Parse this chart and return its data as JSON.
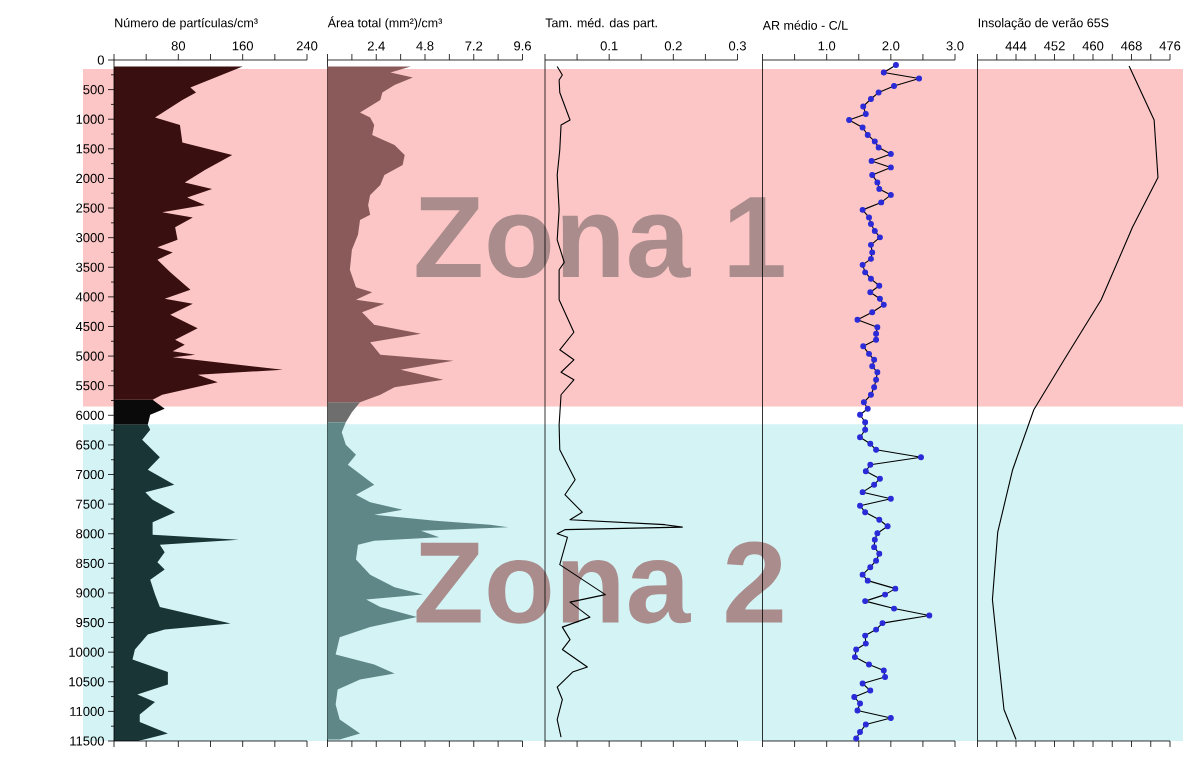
{
  "chart_data": [
    {
      "type": "area",
      "orientation": "horizontal",
      "title": "Número de partículas/cm³",
      "xlim": [
        0,
        240
      ],
      "xticks": [
        {
          "value": 0,
          "label": null
        },
        {
          "value": 40,
          "label": null
        },
        80,
        {
          "value": 120,
          "label": null
        },
        160,
        {
          "value": 200,
          "label": null
        },
        240
      ],
      "ylim": [
        11500,
        0
      ],
      "yticks": [
        0,
        {
          "value": 250,
          "label": null
        },
        500,
        {
          "value": 750,
          "label": null
        },
        1000,
        {
          "value": 1250,
          "label": null
        },
        1500,
        {
          "value": 1750,
          "label": null
        },
        2000,
        {
          "value": 2250,
          "label": null
        },
        2500,
        {
          "value": 2750,
          "label": null
        },
        3000,
        {
          "value": 3250,
          "label": null
        },
        3500,
        {
          "value": 3750,
          "label": null
        },
        4000,
        {
          "value": 4250,
          "label": null
        },
        4500,
        {
          "value": 4750,
          "label": null
        },
        5000,
        {
          "value": 5250,
          "label": null
        },
        5500,
        {
          "value": 5750,
          "label": null
        },
        6000,
        {
          "value": 6250,
          "label": null
        },
        6500,
        {
          "value": 6750,
          "label": null
        },
        7000,
        {
          "value": 7250,
          "label": null
        },
        7500,
        {
          "value": 7750,
          "label": null
        },
        8000,
        {
          "value": 8250,
          "label": null
        },
        8500,
        {
          "value": 8750,
          "label": null
        },
        9000,
        {
          "value": 9250,
          "label": null
        },
        9500,
        {
          "value": 9750,
          "label": null
        },
        10000,
        {
          "value": 10250,
          "label": null
        },
        10500,
        {
          "value": 10750,
          "label": null
        },
        11000,
        {
          "value": 11250,
          "label": null
        },
        11500
      ],
      "bands": [
        {
          "axis": "y",
          "from": 150,
          "to": 5850,
          "label": "Zona 1",
          "color": "#fcc6c6"
        },
        {
          "axis": "y",
          "from": 6150,
          "to": 11500,
          "label": "Zona 2",
          "color": "#d3f3f5"
        }
      ],
      "series": [
        {
          "color": "#3a0f0f",
          "x": [
            110,
            464,
            548,
            675,
            970,
            1097,
            1392,
            1603,
            1856,
            2067,
            2177,
            2320,
            2447,
            2573,
            2658,
            2826,
            3037,
            3164,
            3249,
            3375,
            3586,
            3881,
            4033,
            4117,
            4303,
            4530,
            4725,
            4809,
            4919,
            4978,
            5020,
            5231,
            5315,
            5442,
            5653,
            5737
          ],
          "values": [
            160,
            95,
            102,
            85,
            51,
            82,
            85,
            147,
            113,
            88,
            122,
            91,
            113,
            60,
            98,
            76,
            79,
            54,
            73,
            54,
            70,
            95,
            63,
            98,
            70,
            104,
            76,
            88,
            73,
            101,
            73,
            210,
            104,
            129,
            60,
            48
          ]
        },
        {
          "color": "#0a0a0a",
          "x": [
            5737,
            5889,
            5991,
            6160
          ],
          "values": [
            48,
            63,
            45,
            42
          ]
        },
        {
          "color": "#1a3535",
          "x": [
            6160,
            6244,
            6413,
            6708,
            6919,
            7172,
            7298,
            7425,
            7636,
            7805,
            8016,
            8100,
            8184,
            8311,
            8480,
            8606,
            8775,
            9028,
            9239,
            9518,
            9619,
            9703,
            9956,
            10125,
            10336,
            10547,
            10716,
            10842,
            11053,
            11180,
            11374,
            11500
          ],
          "values": [
            42,
            45,
            35,
            57,
            42,
            75,
            39,
            48,
            76,
            48,
            48,
            155,
            57,
            63,
            54,
            63,
            45,
            51,
            57,
            145,
            63,
            42,
            26,
            23,
            67,
            67,
            29,
            51,
            32,
            32,
            67,
            30
          ]
        }
      ]
    },
    {
      "type": "area",
      "orientation": "horizontal",
      "title": "Área total (mm²)/cm³",
      "tick_labels": "x",
      "xlim": [
        0,
        9.6
      ],
      "xticks": [
        {
          "value": 0,
          "label": null
        },
        {
          "value": 1.2,
          "label": null
        },
        2.4,
        {
          "value": 3.6,
          "label": null
        },
        4.8,
        {
          "value": 6,
          "label": null
        },
        7.2,
        {
          "value": 8.4,
          "label": null
        },
        9.6
      ],
      "ylim": [
        11500,
        0
      ],
      "series": [
        {
          "color": "#8a5a5a",
          "x": [
            110,
            211,
            295,
            422,
            548,
            675,
            886,
            970,
            1097,
            1266,
            1434,
            1603,
            1772,
            1941,
            2109,
            2278,
            2447,
            2615,
            2700,
            2953,
            3206,
            3543,
            3839,
            3923,
            4050,
            4117,
            4261,
            4472,
            4624,
            4767,
            4978,
            5079,
            5231,
            5400,
            5526,
            5653,
            5780
          ],
          "values": [
            4.1,
            3.1,
            4.2,
            3.3,
            2.7,
            2.6,
            1.6,
            2.1,
            2.3,
            2.2,
            3.3,
            3.8,
            3.7,
            2.8,
            2.6,
            2.1,
            2.0,
            2.1,
            1.6,
            1.5,
            1.2,
            1.1,
            1.4,
            2.2,
            1.4,
            2.8,
            1.7,
            2.3,
            4.6,
            2.1,
            2.6,
            6.2,
            3.6,
            5.7,
            3.3,
            2.6,
            1.6
          ]
        },
        {
          "color": "#6e6e6e",
          "x": [
            5780,
            5948,
            6117
          ],
          "values": [
            1.6,
            1.2,
            0.9
          ]
        },
        {
          "color": "#5f8787",
          "x": [
            6117,
            6286,
            6497,
            6666,
            6835,
            7172,
            7341,
            7468,
            7594,
            7678,
            7780,
            7847,
            7889,
            7948,
            8058,
            8117,
            8184,
            8437,
            8691,
            8902,
            9028,
            9112,
            9239,
            9408,
            9577,
            9746,
            10040,
            10209,
            10361,
            10462,
            10631,
            10884,
            11138,
            11374,
            11475
          ],
          "values": [
            0.9,
            0.7,
            0.9,
            1.4,
            1.0,
            2.3,
            1.4,
            2.1,
            3.7,
            2.3,
            5.3,
            8.0,
            8.9,
            4.6,
            5.5,
            2.3,
            1.5,
            1.4,
            2.1,
            3.3,
            4.7,
            1.9,
            2.6,
            4.4,
            2.1,
            0.6,
            0.4,
            2.3,
            3.3,
            1.6,
            0.5,
            0.4,
            0.6,
            1.6,
            0.6
          ]
        }
      ]
    },
    {
      "type": "line",
      "orientation": "horizontal",
      "title": "Tam. méd. das part.",
      "tick_labels": "x",
      "xlim": [
        0,
        0.3
      ],
      "xticks": [
        {
          "value": 0,
          "label": null
        },
        {
          "value": 0.05,
          "label": null
        },
        0.1,
        {
          "value": 0.15,
          "label": null
        },
        0.2,
        {
          "value": 0.25,
          "label": null
        },
        0.3
      ],
      "ylim": [
        11500,
        0
      ],
      "series": [
        {
          "color": "#000000",
          "x": [
            110,
            253,
            338,
            548,
            1013,
            1097,
            1519,
            1941,
            2531,
            3037,
            3417,
            3543,
            4050,
            4598,
            4894,
            5063,
            5273,
            5400,
            5653,
            6160,
            6582,
            7088,
            7341,
            7636,
            7763,
            7847,
            7889,
            7931,
            7999,
            8058,
            8522,
            9028,
            9155,
            9408,
            9577,
            9788,
            9956,
            10251,
            10336,
            10589,
            10800,
            11138,
            11434
          ],
          "values": [
            0.019,
            0.027,
            0.022,
            0.023,
            0.039,
            0.025,
            0.023,
            0.019,
            0.022,
            0.019,
            0.03,
            0.022,
            0.022,
            0.045,
            0.023,
            0.045,
            0.025,
            0.045,
            0.025,
            0.022,
            0.023,
            0.047,
            0.031,
            0.058,
            0.039,
            0.187,
            0.214,
            0.031,
            0.019,
            0.035,
            0.023,
            0.094,
            0.039,
            0.07,
            0.027,
            0.039,
            0.027,
            0.066,
            0.043,
            0.019,
            0.027,
            0.019,
            0.025
          ]
        }
      ]
    },
    {
      "type": "line",
      "orientation": "horizontal",
      "title": "AR médio - C/L",
      "tick_labels": "x",
      "marker": "circle",
      "xlim": [
        0,
        3
      ],
      "xticks": [
        {
          "value": 0,
          "label": null
        },
        {
          "value": 0.5,
          "label": null
        },
        {
          "value": 1,
          "label": "1.0"
        },
        {
          "value": 1.5,
          "label": null
        },
        {
          "value": 2,
          "label": "2.0"
        },
        {
          "value": 2.5,
          "label": null
        },
        {
          "value": 3,
          "label": "3.0"
        }
      ],
      "ylim": [
        11500,
        0
      ],
      "series": [
        {
          "color": "#2a2ad8",
          "x": [
            84,
            211,
            312,
            439,
            548,
            658,
            785,
            911,
            1013,
            1139,
            1266,
            1375,
            1477,
            1586,
            1704,
            1814,
            1941,
            2067,
            2177,
            2278,
            2405,
            2531,
            2658,
            2768,
            2886,
            2995,
            3122,
            3249,
            3358,
            3459,
            3586,
            3695,
            3813,
            3923,
            4033,
            4134,
            4261,
            4387,
            4514,
            4624,
            4725,
            4835,
            4962,
            5063,
            5172,
            5273,
            5400,
            5526,
            5653,
            5780,
            5889,
            5991,
            6117,
            6244,
            6371,
            6481,
            6582,
            6708,
            6835,
            6945,
            7071,
            7172,
            7298,
            7408,
            7527,
            7636,
            7763,
            7873,
            7991,
            8100,
            8227,
            8337,
            8455,
            8565,
            8691,
            8792,
            8927,
            9028,
            9138,
            9264,
            9382,
            9509,
            9619,
            9720,
            9855,
            9956,
            10083,
            10209,
            10310,
            10420,
            10529,
            10648,
            10757,
            10867,
            10985,
            11112,
            11222,
            11349,
            11459
          ],
          "values": [
            2.08,
            1.89,
            2.44,
            2.05,
            1.81,
            1.69,
            1.57,
            1.61,
            1.35,
            1.56,
            1.64,
            1.75,
            1.81,
            2.0,
            1.7,
            2.0,
            1.71,
            1.79,
            1.82,
            2.0,
            1.85,
            1.56,
            1.66,
            1.69,
            1.75,
            1.83,
            1.69,
            1.71,
            1.69,
            1.56,
            1.6,
            1.69,
            1.82,
            1.68,
            1.83,
            1.89,
            1.71,
            1.48,
            1.79,
            1.77,
            1.77,
            1.57,
            1.66,
            1.74,
            1.71,
            1.79,
            1.77,
            1.74,
            1.69,
            1.58,
            1.64,
            1.52,
            1.6,
            1.6,
            1.52,
            1.68,
            1.77,
            2.47,
            1.68,
            1.61,
            1.83,
            1.74,
            1.56,
            2.0,
            1.52,
            1.6,
            1.82,
            1.95,
            1.79,
            1.75,
            1.74,
            1.82,
            1.77,
            1.68,
            1.56,
            1.64,
            2.07,
            1.91,
            1.6,
            2.05,
            2.6,
            1.87,
            1.77,
            1.6,
            1.61,
            1.46,
            1.44,
            1.66,
            1.89,
            1.91,
            1.56,
            1.68,
            1.43,
            1.52,
            1.48,
            2.0,
            1.61,
            1.52,
            1.46
          ]
        }
      ]
    },
    {
      "type": "line",
      "orientation": "horizontal",
      "title": "Insolação de verão 65S",
      "tick_labels": "x",
      "xlim": [
        436,
        476
      ],
      "xticks": [
        {
          "value": 436,
          "label": null
        },
        {
          "value": 440,
          "label": null
        },
        444,
        {
          "value": 448,
          "label": null
        },
        452,
        {
          "value": 456,
          "label": null
        },
        460,
        {
          "value": 464,
          "label": null
        },
        468,
        {
          "value": 472,
          "label": null
        },
        476
      ],
      "ylim": [
        11500,
        0
      ],
      "series": [
        {
          "color": "#000000",
          "x": [
            101,
            1013,
            1983,
            2826,
            4050,
            5063,
            5906,
            6919,
            7974,
            9112,
            10209,
            10968,
            11475
          ],
          "values": [
            467.5,
            472.7,
            473.5,
            468.2,
            461.7,
            454.0,
            447.7,
            443.3,
            440.2,
            439.1,
            440.5,
            441.5,
            444.0
          ]
        }
      ]
    }
  ]
}
